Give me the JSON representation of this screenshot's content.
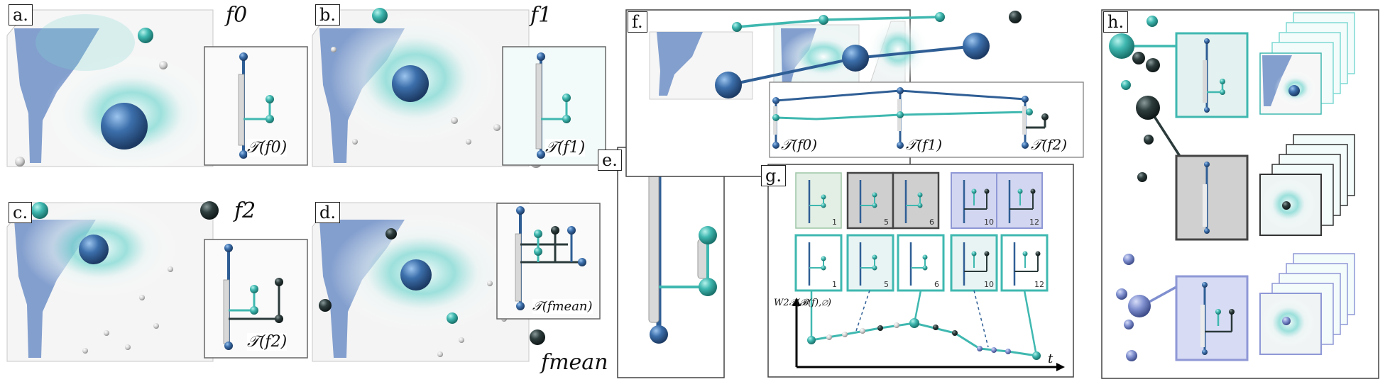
{
  "panels": {
    "a": {
      "label": "a.",
      "function": "f0",
      "tree_label": "𝒯(f0)"
    },
    "b": {
      "label": "b.",
      "function": "f1",
      "tree_label": "𝒯(f1)"
    },
    "c": {
      "label": "c.",
      "function": "f2",
      "tree_label": "𝒯(f2)"
    },
    "d": {
      "label": "d.",
      "function": "fmean",
      "tree_label": "𝒯(fmean)"
    },
    "e": {
      "label": "e."
    },
    "f": {
      "label": "f.",
      "tree_labels": [
        "𝒯(f0)",
        "𝒯(f1)",
        "𝒯(f2)"
      ]
    },
    "g": {
      "label": "g.",
      "frame_numbers_top": [
        "1",
        "5",
        "6",
        "10",
        "12"
      ],
      "frame_numbers_bottom": [
        "1",
        "5",
        "6",
        "10",
        "12"
      ],
      "y_axis_label": "W2𝒯(𝓑(f),∅)",
      "x_axis_label": "t"
    },
    "h": {
      "label": "h."
    }
  },
  "colors": {
    "teal": "#3fb8b0",
    "blue": "#2f5e95",
    "dark": "#2b3a3a",
    "land": "#6f8fc7",
    "grey_bg": "#cfcfcf",
    "green_bg": "#e3efe4",
    "violet_bg": "#d2d6f0"
  }
}
